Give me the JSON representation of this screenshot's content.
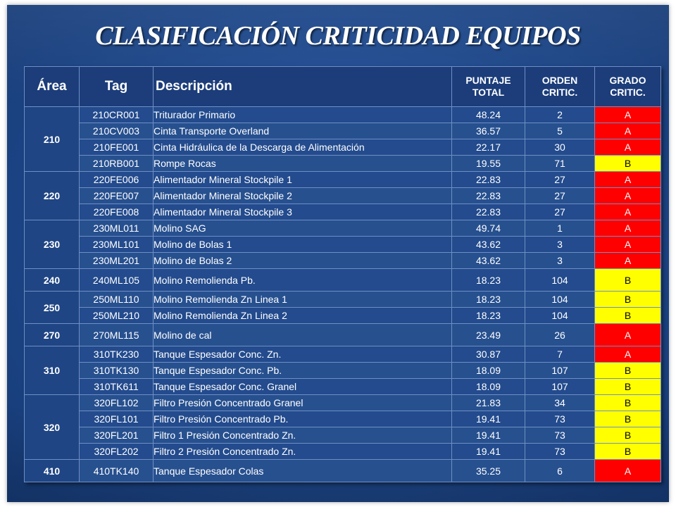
{
  "title": "CLASIFICACIÓN CRITICIDAD EQUIPOS",
  "headers": {
    "area": "Área",
    "tag": "Tag",
    "descripcion": "Descripción",
    "puntaje": [
      "PUNTAJE",
      "TOTAL"
    ],
    "orden": [
      "ORDEN",
      "CRITIC."
    ],
    "grado": [
      "GRADO",
      "CRITIC."
    ]
  },
  "colors": {
    "A": "#ff0000",
    "B": "#ffff00",
    "background": "#1f4a8e"
  },
  "groups": [
    {
      "area": "210",
      "rows": [
        {
          "tag": "210CR001",
          "desc": "Triturador Primario",
          "puntaje": "48.24",
          "orden": "2",
          "grado": "A"
        },
        {
          "tag": "210CV003",
          "desc": "Cinta Transporte Overland",
          "puntaje": "36.57",
          "orden": "5",
          "grado": "A"
        },
        {
          "tag": "210FE001",
          "desc": "Cinta Hidráulica de la Descarga de Alimentación",
          "puntaje": "22.17",
          "orden": "30",
          "grado": "A"
        },
        {
          "tag": "210RB001",
          "desc": "Rompe Rocas",
          "puntaje": "19.55",
          "orden": "71",
          "grado": "B"
        }
      ]
    },
    {
      "area": "220",
      "rows": [
        {
          "tag": "220FE006",
          "desc": "Alimentador Mineral Stockpile 1",
          "puntaje": "22.83",
          "orden": "27",
          "grado": "A"
        },
        {
          "tag": "220FE007",
          "desc": "Alimentador Mineral Stockpile 2",
          "puntaje": "22.83",
          "orden": "27",
          "grado": "A"
        },
        {
          "tag": "220FE008",
          "desc": "Alimentador Mineral Stockpile 3",
          "puntaje": "22.83",
          "orden": "27",
          "grado": "A"
        }
      ]
    },
    {
      "area": "230",
      "rows": [
        {
          "tag": "230ML011",
          "desc": "Molino SAG",
          "puntaje": "49.74",
          "orden": "1",
          "grado": "A"
        },
        {
          "tag": "230ML101",
          "desc": "Molino de Bolas 1",
          "puntaje": "43.62",
          "orden": "3",
          "grado": "A"
        },
        {
          "tag": "230ML201",
          "desc": "Molino de Bolas 2",
          "puntaje": "43.62",
          "orden": "3",
          "grado": "A"
        }
      ]
    },
    {
      "area": "240",
      "tall": true,
      "rows": [
        {
          "tag": "240ML105",
          "desc": "Molino Remolienda Pb.",
          "puntaje": "18.23",
          "orden": "104",
          "grado": "B"
        }
      ]
    },
    {
      "area": "250",
      "rows": [
        {
          "tag": "250ML110",
          "desc": "Molino Remolienda Zn Linea 1",
          "puntaje": "18.23",
          "orden": "104",
          "grado": "B"
        },
        {
          "tag": "250ML210",
          "desc": "Molino Remolienda Zn Linea 2",
          "puntaje": "18.23",
          "orden": "104",
          "grado": "B"
        }
      ]
    },
    {
      "area": "270",
      "tall": true,
      "rows": [
        {
          "tag": "270ML115",
          "desc": "Molino de cal",
          "puntaje": "23.49",
          "orden": "26",
          "grado": "A"
        }
      ]
    },
    {
      "area": "310",
      "rows": [
        {
          "tag": "310TK230",
          "desc": "Tanque Espesador Conc. Zn.",
          "puntaje": "30.87",
          "orden": "7",
          "grado": "A"
        },
        {
          "tag": "310TK130",
          "desc": "Tanque Espesador Conc. Pb.",
          "puntaje": "18.09",
          "orden": "107",
          "grado": "B"
        },
        {
          "tag": "310TK611",
          "desc": "Tanque Espesador Conc. Granel",
          "puntaje": "18.09",
          "orden": "107",
          "grado": "B"
        }
      ]
    },
    {
      "area": "320",
      "rows": [
        {
          "tag": "320FL102",
          "desc": "Filtro Presión Concentrado Granel",
          "puntaje": "21.83",
          "orden": "34",
          "grado": "B"
        },
        {
          "tag": "320FL101",
          "desc": "Filtro Presión Concentrado Pb.",
          "puntaje": "19.41",
          "orden": "73",
          "grado": "B"
        },
        {
          "tag": "320FL201",
          "desc": "Filtro 1 Presión Concentrado Zn.",
          "puntaje": "19.41",
          "orden": "73",
          "grado": "B"
        },
        {
          "tag": "320FL202",
          "desc": "Filtro 2 Presión Concentrado Zn.",
          "puntaje": "19.41",
          "orden": "73",
          "grado": "B"
        }
      ]
    },
    {
      "area": "410",
      "tall": true,
      "rows": [
        {
          "tag": "410TK140",
          "desc": "Tanque Espesador Colas",
          "puntaje": "35.25",
          "orden": "6",
          "grado": "A"
        }
      ]
    }
  ]
}
